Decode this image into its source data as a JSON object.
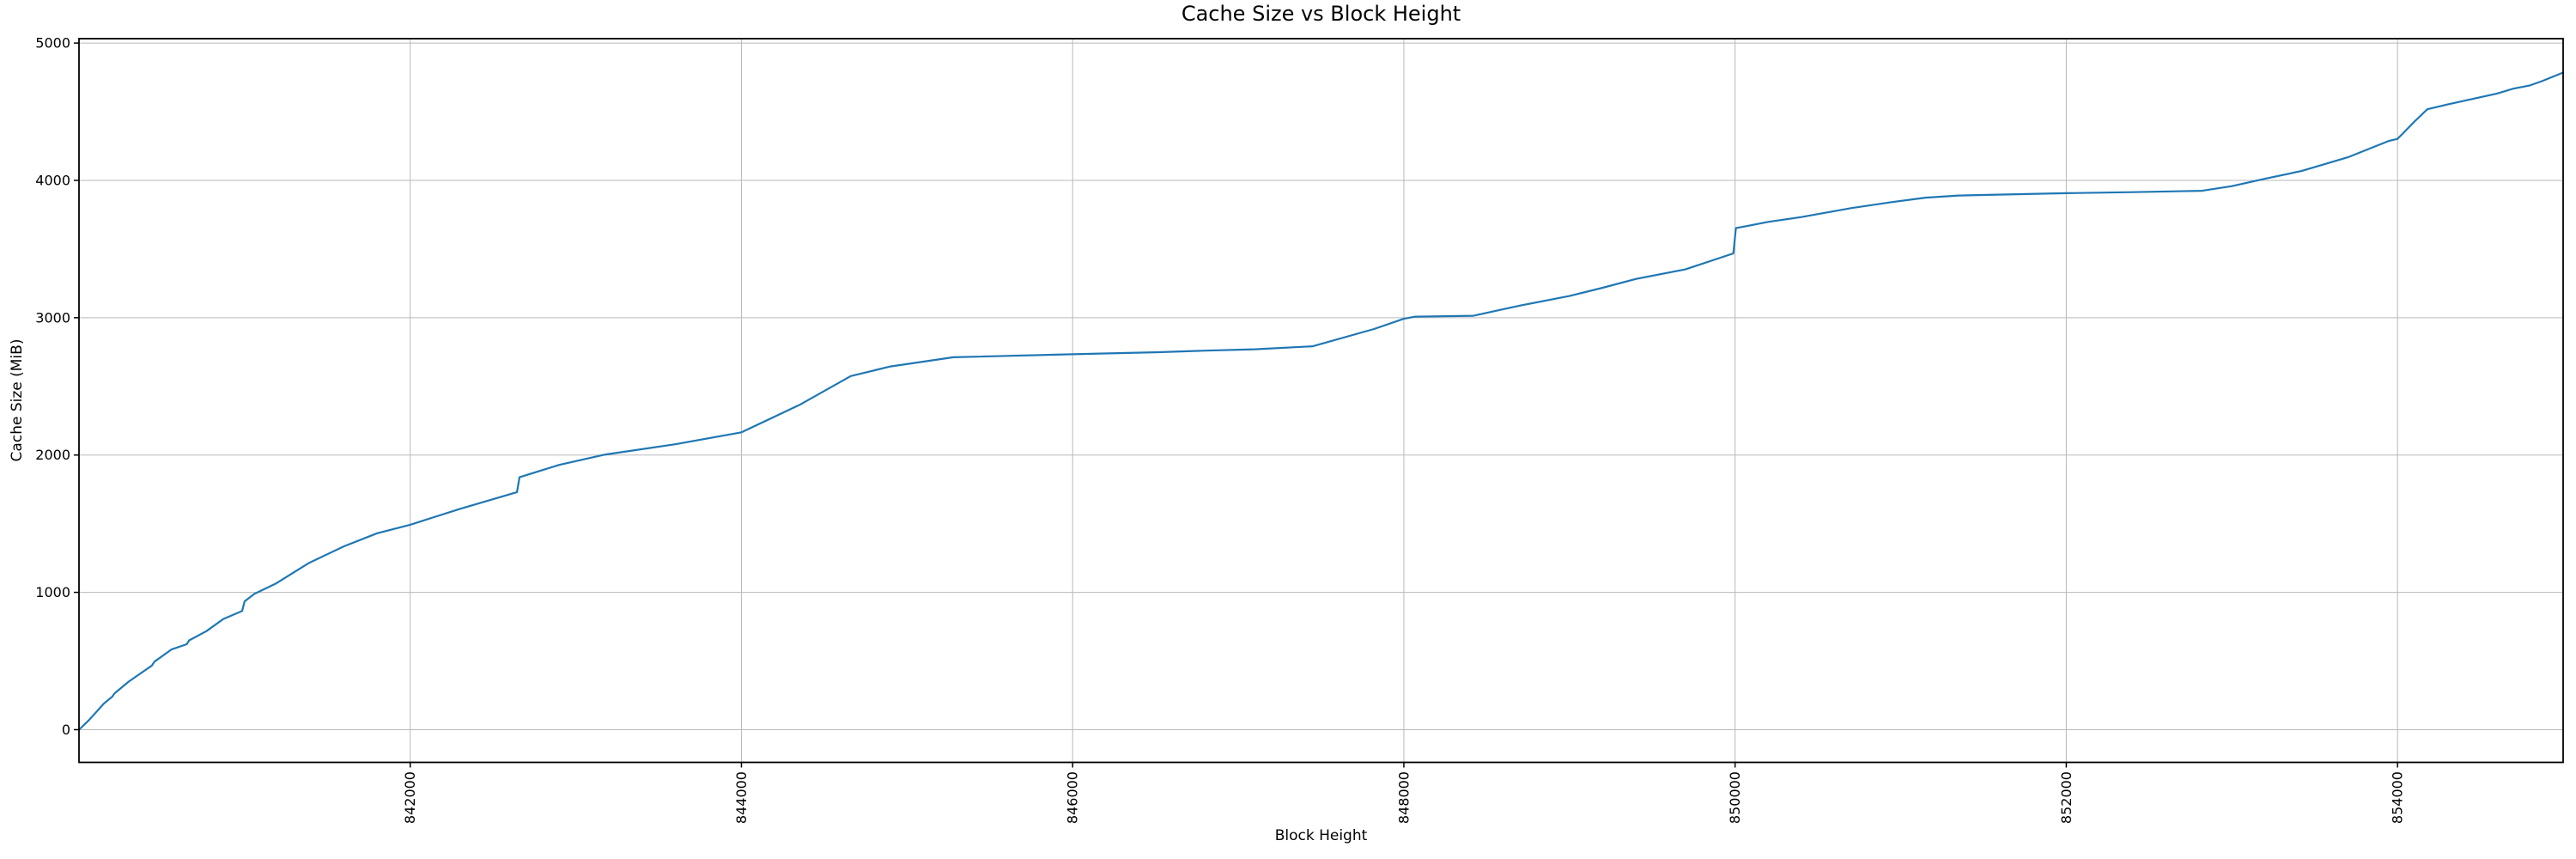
{
  "chart_data": {
    "type": "line",
    "title": "Cache Size vs Block Height",
    "xlabel": "Block Height",
    "ylabel": "Cache Size (MiB)",
    "xlim": [
      840000,
      855000
    ],
    "ylim": [
      -238,
      5032
    ],
    "x_ticks": [
      842000,
      844000,
      846000,
      848000,
      850000,
      852000,
      854000
    ],
    "y_ticks": [
      0,
      1000,
      2000,
      3000,
      4000,
      5000
    ],
    "x_tick_rotation_deg": -90,
    "grid": true,
    "legend": "none",
    "line_color": "#1f77b4",
    "series": [
      {
        "name": "cache_size_mib",
        "x": [
          840000,
          840060,
          840150,
          840200,
          840215,
          840300,
          840360,
          840440,
          840455,
          840560,
          840650,
          840665,
          840770,
          840870,
          840985,
          841000,
          841060,
          841190,
          841390,
          841600,
          841800,
          842000,
          842300,
          842645,
          842660,
          842900,
          843170,
          843600,
          844000,
          844350,
          844660,
          844900,
          845280,
          846000,
          846500,
          846800,
          847100,
          847450,
          847820,
          848000,
          848070,
          848420,
          848700,
          849000,
          849200,
          849400,
          849700,
          849990,
          850005,
          850200,
          850400,
          850700,
          850950,
          851150,
          851350,
          852000,
          852400,
          852820,
          853000,
          853200,
          853420,
          853700,
          853950,
          854000,
          854100,
          854180,
          854300,
          854450,
          854600,
          854700,
          854800,
          854870,
          855000
        ],
        "y": [
          0,
          70,
          190,
          240,
          265,
          350,
          400,
          467,
          495,
          585,
          622,
          650,
          718,
          805,
          865,
          935,
          990,
          1065,
          1215,
          1335,
          1430,
          1492,
          1608,
          1730,
          1838,
          1928,
          2002,
          2078,
          2165,
          2365,
          2575,
          2645,
          2712,
          2734,
          2748,
          2760,
          2770,
          2792,
          2918,
          2992,
          3008,
          3014,
          3088,
          3158,
          3218,
          3282,
          3352,
          3468,
          3652,
          3698,
          3733,
          3798,
          3842,
          3874,
          3890,
          3907,
          3914,
          3924,
          3958,
          4012,
          4068,
          4168,
          4288,
          4302,
          4425,
          4518,
          4552,
          4592,
          4632,
          4668,
          4692,
          4722,
          4785
        ]
      }
    ]
  }
}
